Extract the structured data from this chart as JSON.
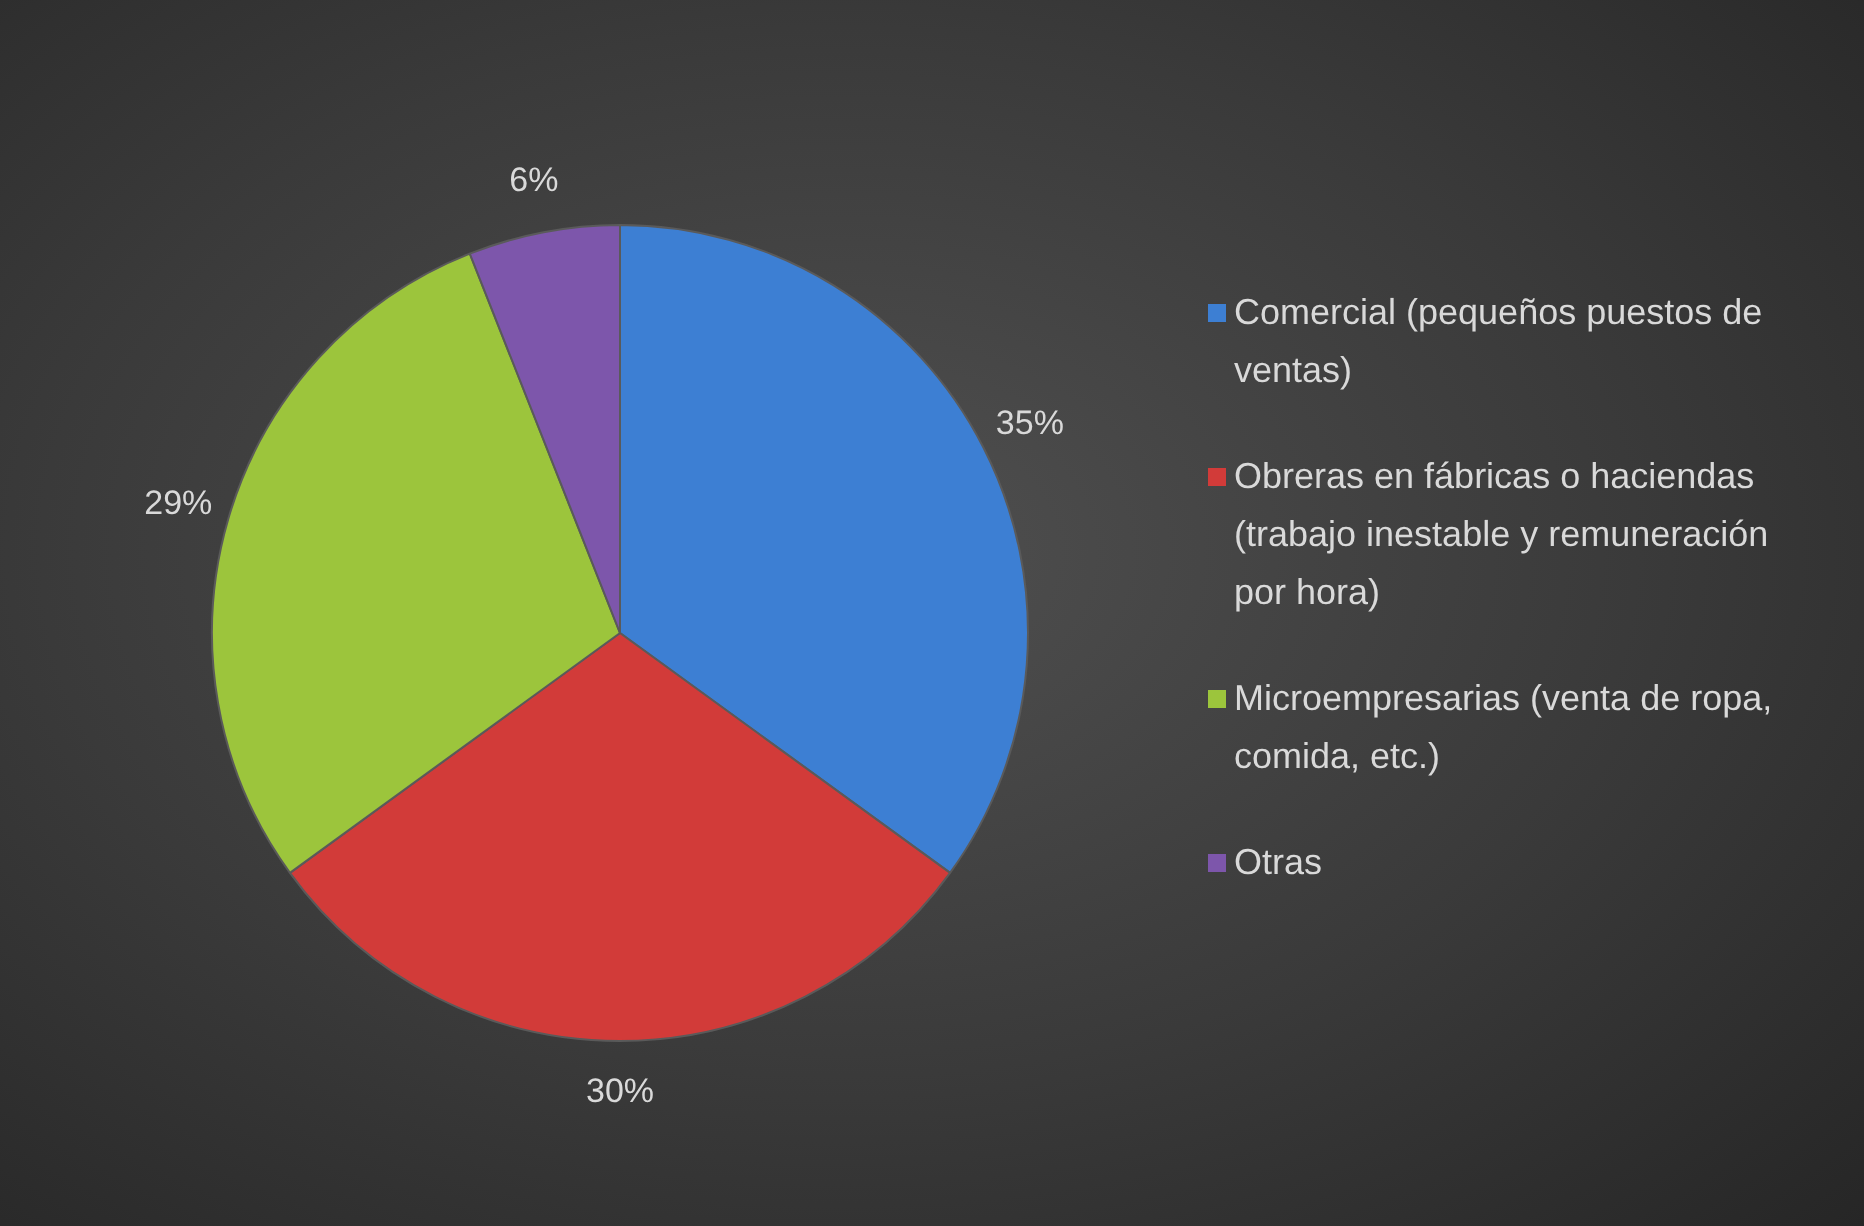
{
  "chart_data": {
    "type": "pie",
    "categories": [
      "Comercial (pequeños puestos de ventas)",
      "Obreras en fábricas o haciendas (trabajo inestable y remuneración por hora)",
      "Microempresarias (venta de ropa, comida, etc.)",
      "Otras"
    ],
    "values": [
      35,
      30,
      29,
      6
    ],
    "colors": [
      "#3d7fd3",
      "#d23b39",
      "#9cc53c",
      "#7d56ab"
    ],
    "value_labels": [
      "35%",
      "30%",
      "29%",
      "6%"
    ],
    "legend": "right"
  }
}
